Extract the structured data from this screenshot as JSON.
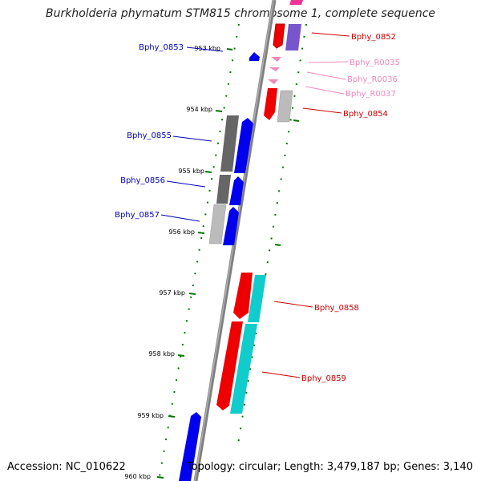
{
  "title": "Burkholderia phymatum STM815 chromosome 1, complete sequence",
  "accession": "Accession: NC_010622",
  "topology": "Topology: circular; Length: 3,479,187 bp; Genes: 3,140",
  "colors": {
    "red": "#ee0000",
    "blue": "#0000ee",
    "cyan": "#11cccc",
    "gray_dark": "#666666",
    "gray_light": "#bbbbbb",
    "purple": "#7755cc",
    "pink": "#ee88bb",
    "magenta": "#ee3399",
    "ruler": "#007700",
    "backbone": "#808080"
  },
  "ticks": [
    {
      "label": "953 kbp"
    },
    {
      "label": "954 kbp"
    },
    {
      "label": "955 kbp"
    },
    {
      "label": "956 kbp"
    },
    {
      "label": "957 kbp"
    },
    {
      "label": "958 kbp"
    },
    {
      "label": "959 kbp"
    },
    {
      "label": "960 kbp"
    }
  ],
  "gene_labels": [
    {
      "text": "Bphy_0852",
      "color": "#cc0000"
    },
    {
      "text": "Bphy_0853",
      "color": "#0000bb"
    },
    {
      "text": "Bphy_R0035",
      "color": "#ee88bb"
    },
    {
      "text": "Bphy_R0036",
      "color": "#ee88bb"
    },
    {
      "text": "Bphy_R0037",
      "color": "#ee88bb"
    },
    {
      "text": "Bphy_0854",
      "color": "#cc0000"
    },
    {
      "text": "Bphy_0855",
      "color": "#0000bb"
    },
    {
      "text": "Bphy_0856",
      "color": "#0000bb"
    },
    {
      "text": "Bphy_0857",
      "color": "#0000bb"
    },
    {
      "text": "Bphy_0858",
      "color": "#cc0000"
    },
    {
      "text": "Bphy_0859",
      "color": "#cc0000"
    }
  ]
}
